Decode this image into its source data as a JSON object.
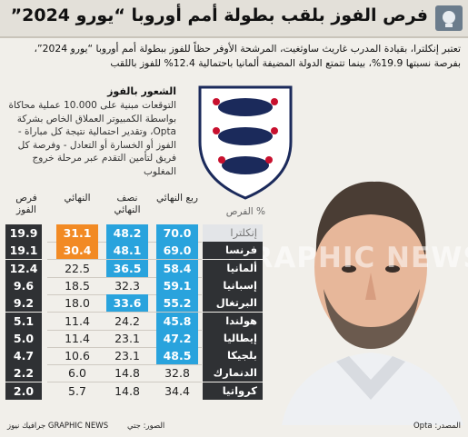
{
  "title": "فرص الفوز بلقب بطولة أمم أوروبا “يورو 2024”",
  "intro": "تعتبر إنكلترا، بقيادة المدرب غاريث ساوثغيت، المرشحة الأوفر حظاً للفوز ببطولة أمم أوروبا “يورو 2024”، بفرصة نسبتها 19.9%، بينما تتمتع الدولة المضيفة ألمانيا باحتمالية 12.4% للفوز باللقب",
  "side": {
    "title": "الشعور بالفوز",
    "text": "التوقعات مبنية على 10.000 عملية محاكاة بواسطة الكمبيوتر العملاق الخاص بشركة Opta، وتقدير احتمالية نتيجة كل مباراة - الفوز أو الخسارة أو التعادل - وفرصة كل فريق لتأمين التقدم عبر مرحلة خروج المغلوب"
  },
  "colors": {
    "highlight_blue": "#29a3dd",
    "highlight_orange": "#f28a24",
    "team_bg": "#2f3134",
    "title_bar": "#e3e0d9"
  },
  "chart_data": {
    "type": "table",
    "pct_label": "% الفرص",
    "columns": [
      "ربع النهائي",
      "نصف النهائي",
      "النهائي",
      "فرص الفوز"
    ],
    "rows": [
      {
        "team": "إنكلترا",
        "qf": 70.0,
        "sf": 48.2,
        "final": 31.1,
        "win": 19.9
      },
      {
        "team": "فرنسا",
        "qf": 69.0,
        "sf": 48.1,
        "final": 30.4,
        "win": 19.1
      },
      {
        "team": "ألمانيا",
        "qf": 58.4,
        "sf": 36.5,
        "final": 22.5,
        "win": 12.4
      },
      {
        "team": "إسبانيا",
        "qf": 59.1,
        "sf": 32.3,
        "final": 18.5,
        "win": 9.6
      },
      {
        "team": "البرتغال",
        "qf": 55.2,
        "sf": 33.6,
        "final": 18.0,
        "win": 9.2
      },
      {
        "team": "هولندا",
        "qf": 45.8,
        "sf": 24.2,
        "final": 11.4,
        "win": 5.1
      },
      {
        "team": "إيطاليا",
        "qf": 47.2,
        "sf": 23.1,
        "final": 11.4,
        "win": 5.0
      },
      {
        "team": "بلجيكا",
        "qf": 48.5,
        "sf": 23.1,
        "final": 10.6,
        "win": 4.7
      },
      {
        "team": "الدنمارك",
        "qf": 32.8,
        "sf": 14.8,
        "final": 6.0,
        "win": 2.2
      },
      {
        "team": "كرواتيا",
        "qf": 34.4,
        "sf": 14.8,
        "final": 5.7,
        "win": 2.0
      }
    ],
    "highlighted": {
      "win": [
        0,
        1,
        2,
        3,
        4,
        5,
        6,
        7,
        8,
        9
      ],
      "final": [
        0,
        1
      ],
      "sf": [
        0,
        1,
        2,
        4
      ],
      "qf": [
        0,
        1,
        2,
        3,
        4,
        5,
        6,
        7
      ]
    }
  },
  "footer": {
    "source": "المصدر: Opta",
    "photo": "الصور: جتي",
    "brand": "جرافيك نيوز GRAPHIC NEWS"
  },
  "watermark": "GRAPHIC NEWS"
}
